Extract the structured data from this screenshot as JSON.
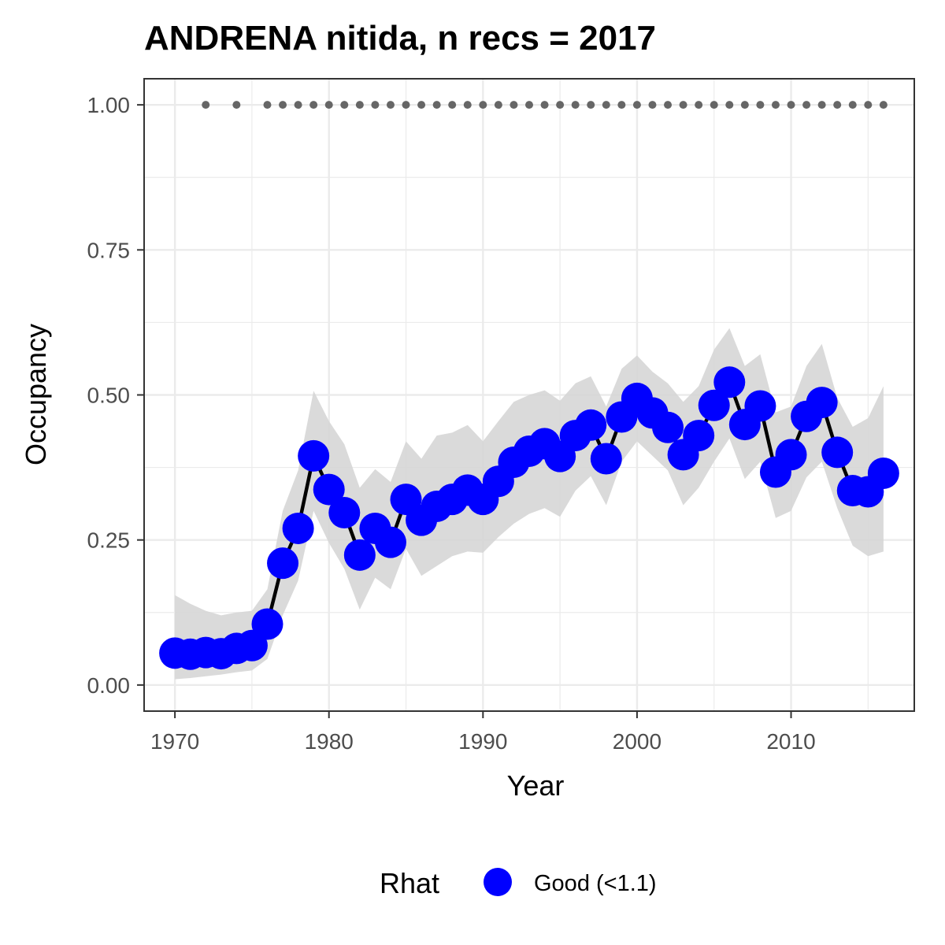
{
  "chart_data": {
    "type": "line",
    "title": "ANDRENA nitida, n recs = 2017",
    "xlabel": "Year",
    "ylabel": "Occupancy",
    "xlim": [
      1968,
      2018
    ],
    "ylim": [
      -0.045,
      1.045
    ],
    "x_ticks": [
      1970,
      1980,
      1990,
      2000,
      2010
    ],
    "x_tick_labels": [
      "1970",
      "1980",
      "1990",
      "2000",
      "2010"
    ],
    "y_ticks": [
      0,
      0.25,
      0.5,
      0.75,
      1.0
    ],
    "y_tick_labels": [
      "0.00",
      "0.25",
      "0.50",
      "0.75",
      "1.00"
    ],
    "grid": true,
    "legend": {
      "title": "Rhat",
      "position": "bottom",
      "entries": [
        {
          "label": "Good (<1.1)",
          "color": "#0000ff"
        }
      ]
    },
    "colors": {
      "points": "#0000ff",
      "line": "#000000",
      "ribbon": "#d6d6d6",
      "record_dots": "#666666",
      "grid": "#ebebeb",
      "panel_border": "#333333"
    },
    "x": [
      1970,
      1971,
      1972,
      1973,
      1974,
      1975,
      1976,
      1977,
      1978,
      1979,
      1980,
      1981,
      1982,
      1983,
      1984,
      1985,
      1986,
      1987,
      1988,
      1989,
      1990,
      1991,
      1992,
      1993,
      1994,
      1995,
      1996,
      1997,
      1998,
      1999,
      2000,
      2001,
      2002,
      2003,
      2004,
      2005,
      2006,
      2007,
      2008,
      2009,
      2010,
      2011,
      2012,
      2013,
      2014,
      2015,
      2016
    ],
    "series": [
      {
        "values": [
          0.055,
          0.053,
          0.056,
          0.054,
          0.063,
          0.068,
          0.105,
          0.21,
          0.27,
          0.395,
          0.337,
          0.297,
          0.224,
          0.27,
          0.246,
          0.32,
          0.284,
          0.308,
          0.32,
          0.336,
          0.32,
          0.351,
          0.384,
          0.403,
          0.416,
          0.394,
          0.43,
          0.448,
          0.39,
          0.462,
          0.494,
          0.469,
          0.444,
          0.397,
          0.43,
          0.482,
          0.522,
          0.449,
          0.481,
          0.367,
          0.397,
          0.463,
          0.487,
          0.401,
          0.335,
          0.333,
          0.365
        ],
        "lower": [
          0.01,
          0.012,
          0.015,
          0.018,
          0.022,
          0.025,
          0.045,
          0.12,
          0.18,
          0.3,
          0.245,
          0.2,
          0.13,
          0.185,
          0.165,
          0.235,
          0.188,
          0.205,
          0.222,
          0.23,
          0.228,
          0.255,
          0.278,
          0.295,
          0.305,
          0.29,
          0.335,
          0.36,
          0.31,
          0.385,
          0.42,
          0.395,
          0.37,
          0.31,
          0.34,
          0.385,
          0.425,
          0.355,
          0.385,
          0.288,
          0.3,
          0.358,
          0.385,
          0.305,
          0.24,
          0.222,
          0.23
        ],
        "upper": [
          0.155,
          0.14,
          0.128,
          0.12,
          0.125,
          0.128,
          0.165,
          0.3,
          0.37,
          0.507,
          0.455,
          0.415,
          0.34,
          0.372,
          0.35,
          0.42,
          0.39,
          0.43,
          0.435,
          0.448,
          0.42,
          0.455,
          0.488,
          0.5,
          0.508,
          0.49,
          0.52,
          0.532,
          0.48,
          0.545,
          0.568,
          0.54,
          0.52,
          0.488,
          0.515,
          0.578,
          0.615,
          0.55,
          0.57,
          0.47,
          0.48,
          0.55,
          0.588,
          0.495,
          0.445,
          0.46,
          0.515
        ]
      }
    ],
    "record_years": [
      1972,
      1974,
      1976,
      1977,
      1978,
      1979,
      1980,
      1981,
      1982,
      1983,
      1984,
      1985,
      1986,
      1987,
      1988,
      1989,
      1990,
      1991,
      1992,
      1993,
      1994,
      1995,
      1996,
      1997,
      1998,
      1999,
      2000,
      2001,
      2002,
      2003,
      2004,
      2005,
      2006,
      2007,
      2008,
      2009,
      2010,
      2011,
      2012,
      2013,
      2014,
      2015,
      2016
    ],
    "record_value": 1.0
  }
}
